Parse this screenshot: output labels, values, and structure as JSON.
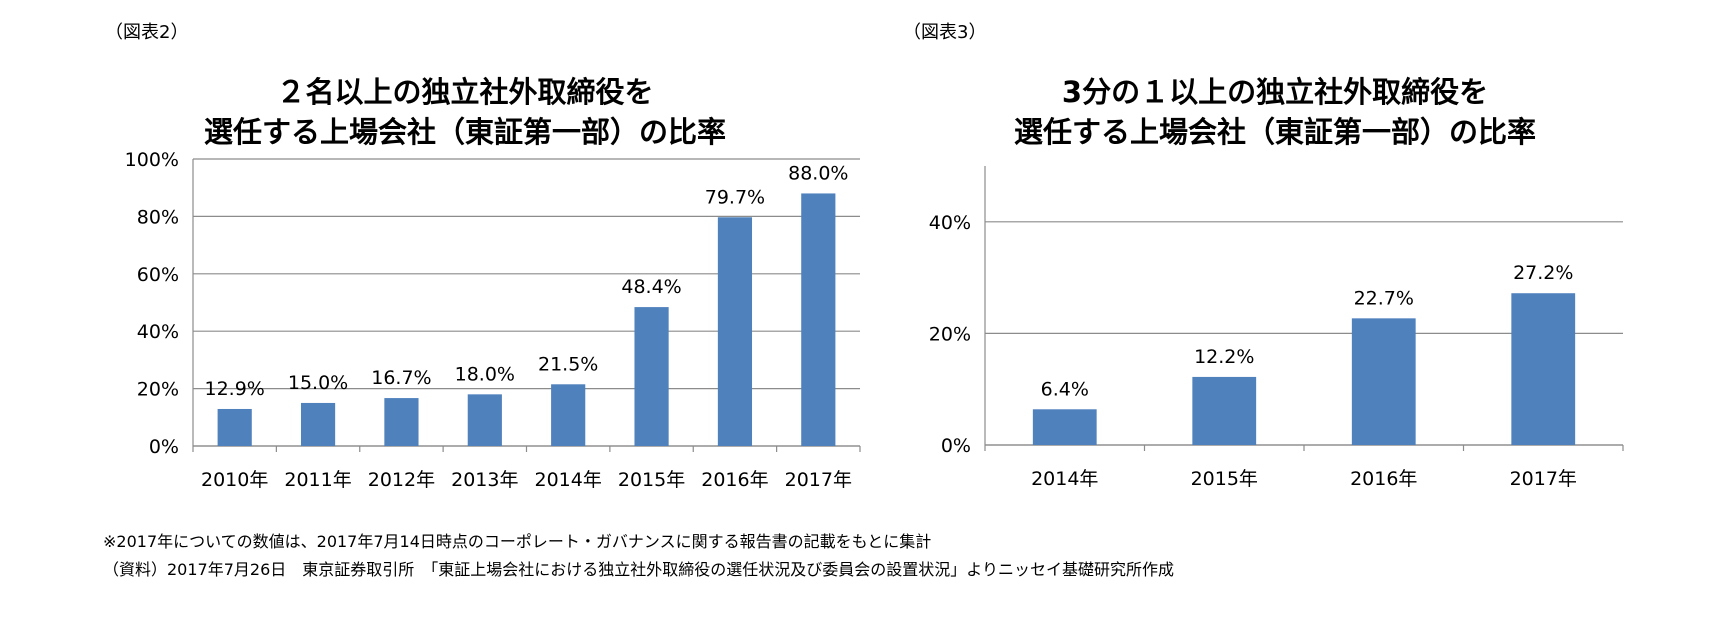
{
  "figure2": {
    "label": "（図表2）"
  },
  "figure3": {
    "label": "（図表3）"
  },
  "chart_data": [
    {
      "type": "bar",
      "title_lines": [
        "２名以上の独立社外取締役を",
        "選任する上場会社（東証第一部）の比率"
      ],
      "categories": [
        "2010年",
        "2011年",
        "2012年",
        "2013年",
        "2014年",
        "2015年",
        "2016年",
        "2017年"
      ],
      "values": [
        12.9,
        15.0,
        16.7,
        18.0,
        21.5,
        48.4,
        79.7,
        88.0
      ],
      "data_labels": [
        "12.9%",
        "15.0%",
        "16.7%",
        "18.0%",
        "21.5%",
        "48.4%",
        "79.7%",
        "88.0%"
      ],
      "yticks": [
        0,
        20,
        40,
        60,
        80,
        100
      ],
      "ytick_labels": [
        "0%",
        "20%",
        "40%",
        "60%",
        "80%",
        "100%"
      ],
      "ylim": [
        0,
        100
      ],
      "grid": true,
      "bar_color": "#4f81bd"
    },
    {
      "type": "bar",
      "title_lines": [
        "3分の１以上の独立社外取締役を",
        "選任する上場会社（東証第一部）の比率"
      ],
      "categories": [
        "2014年",
        "2015年",
        "2016年",
        "2017年"
      ],
      "values": [
        6.4,
        12.2,
        22.7,
        27.2
      ],
      "data_labels": [
        "6.4%",
        "12.2%",
        "22.7%",
        "27.2%"
      ],
      "yticks": [
        0,
        20,
        40
      ],
      "ytick_labels": [
        "0%",
        "20%",
        "40%"
      ],
      "ylim": [
        0,
        50
      ],
      "grid": true,
      "bar_color": "#4f81bd"
    }
  ],
  "notes": {
    "note1": "※2017年についての数値は、2017年7月14日時点のコーポレート・ガバナンスに関する報告書の記載をもとに集計",
    "note2": "（資料）2017年7月26日　東京証券取引所　「東証上場会社における独立社外取締役の選任状況及び委員会の設置状況」よりニッセイ基礎研究所作成"
  }
}
